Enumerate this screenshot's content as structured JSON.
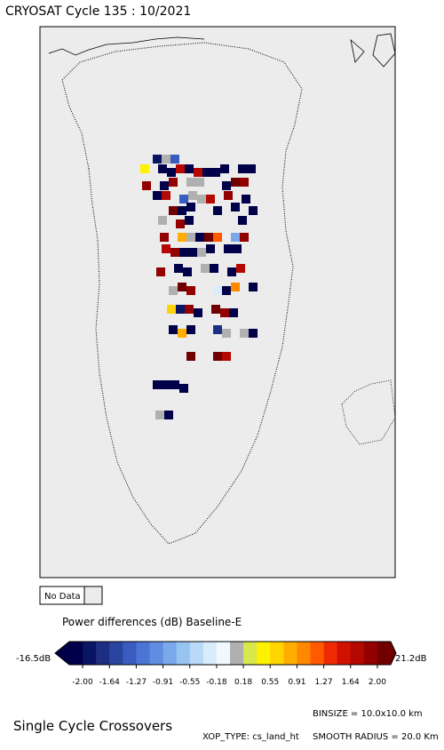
{
  "header": {
    "title": "CRYOSAT Cycle 135 : 10/2021"
  },
  "legend": {
    "no_data": "No Data",
    "colorbar_title": "Power differences (dB) Baseline-E",
    "min_label": "-16.5dB",
    "max_label": "21.2dB",
    "ticks": [
      "-2.00",
      "-1.64",
      "-1.27",
      "-0.91",
      "-0.55",
      "-0.18",
      "0.18",
      "0.55",
      "0.91",
      "1.27",
      "1.64",
      "2.00"
    ],
    "colors": [
      "#00004a",
      "#0a1464",
      "#1e2f82",
      "#2a45a0",
      "#3a5cc0",
      "#4c74d4",
      "#5f8ee0",
      "#7aa8ea",
      "#98c4f2",
      "#b8daf8",
      "#d8ecfc",
      "#f2f8fe",
      "#b0b0b0",
      "#d8e84a",
      "#fff200",
      "#ffd400",
      "#ffae00",
      "#ff8800",
      "#ff5a00",
      "#f02a00",
      "#d21000",
      "#b40800",
      "#920000",
      "#700000"
    ]
  },
  "footer": {
    "left": "Single Cycle Crossovers",
    "binsize": "BINSIZE = 10.0x10.0 km",
    "xop_type": "XOP_TYPE: cs_land_ht",
    "smooth_radius": "SMOOTH RADIUS =  20.0 Km"
  }
}
